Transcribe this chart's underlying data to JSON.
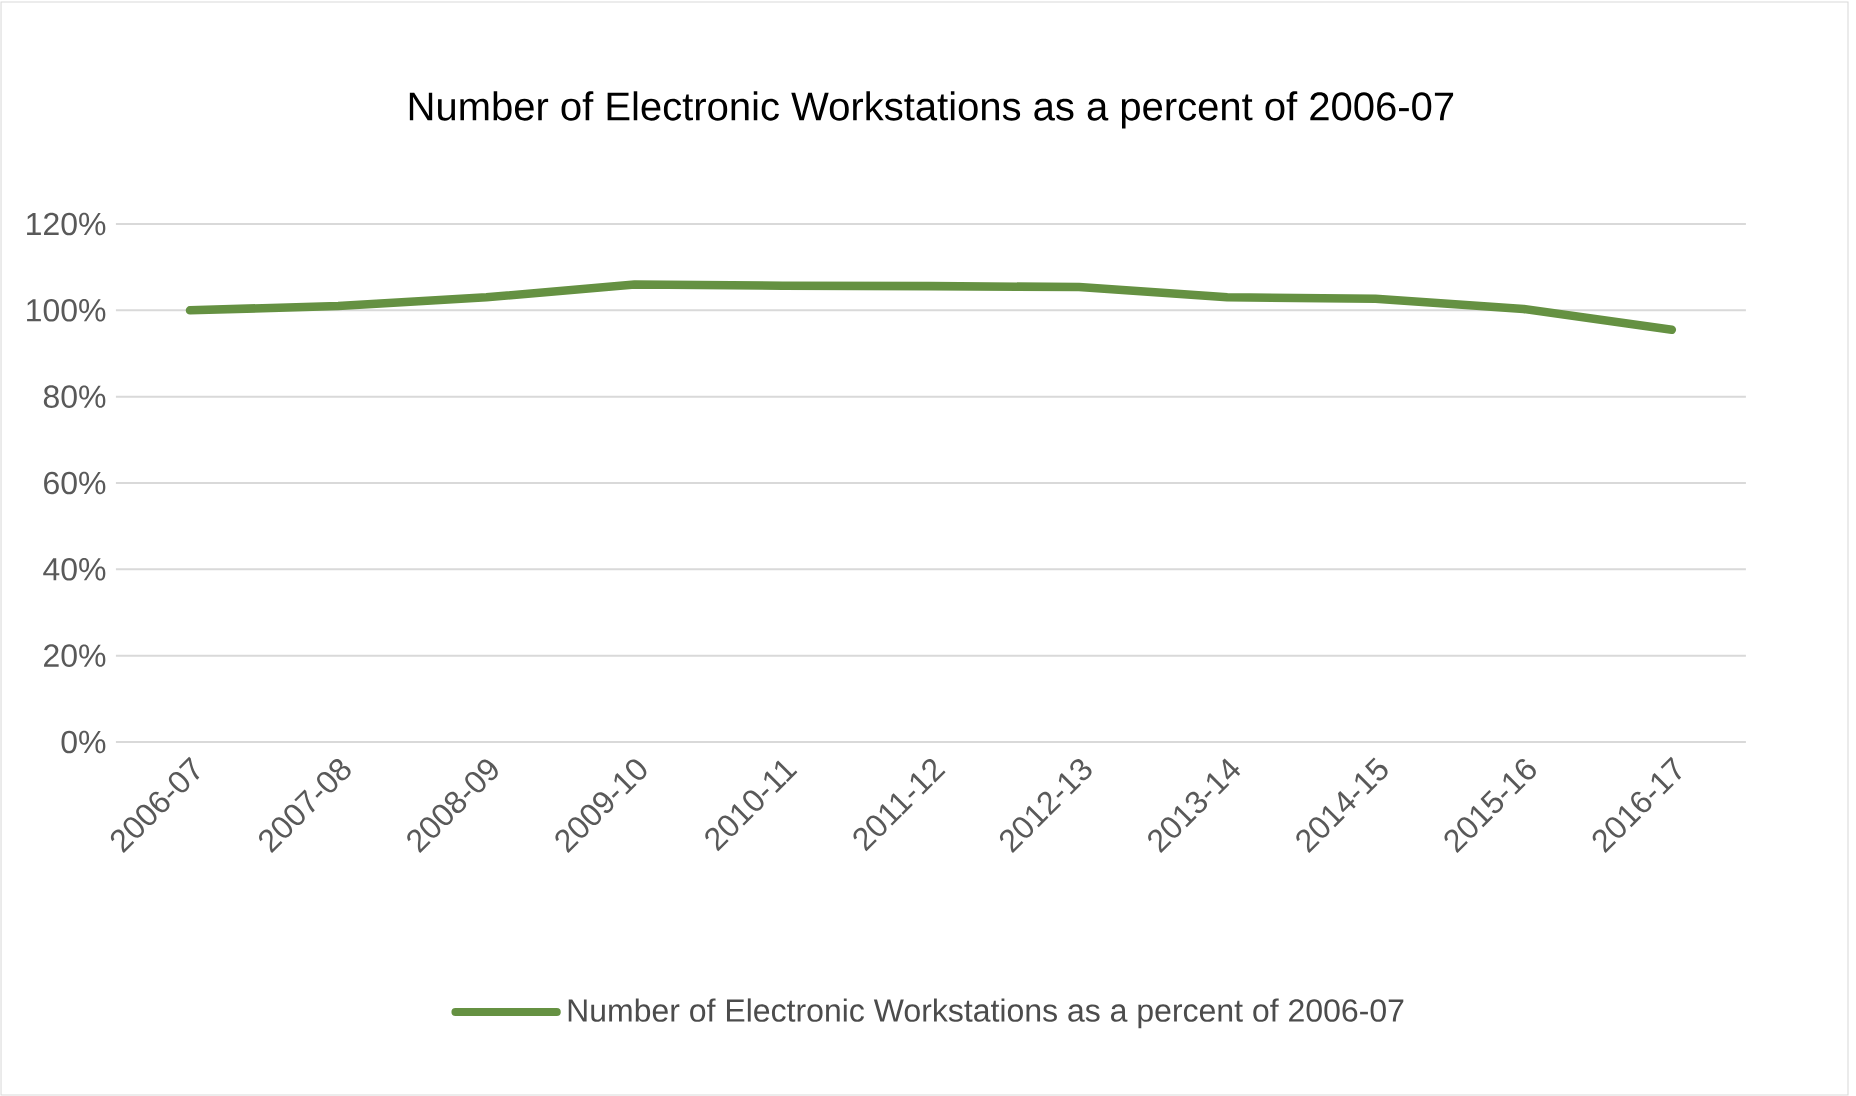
{
  "chart_data": {
    "type": "line",
    "title": "Number of Electronic Workstations as a percent of 2006-07",
    "categories": [
      "2006-07",
      "2007-08",
      "2008-09",
      "2009-10",
      "2010-11",
      "2011-12",
      "2012-13",
      "2013-14",
      "2014-15",
      "2015-16",
      "2016-17"
    ],
    "series": [
      {
        "name": "Number of Electronic Workstations as a percent of 2006-07",
        "color": "#659142",
        "values": [
          100,
          101,
          103,
          106,
          105.7,
          105.6,
          105.4,
          103,
          102.7,
          100.3,
          95.5
        ]
      }
    ],
    "ylim": [
      0,
      120
    ],
    "yticks": [
      {
        "value": 0,
        "label": "0%"
      },
      {
        "value": 20,
        "label": "20%"
      },
      {
        "value": 40,
        "label": "40%"
      },
      {
        "value": 60,
        "label": "60%"
      },
      {
        "value": 80,
        "label": "80%"
      },
      {
        "value": 100,
        "label": "100%"
      },
      {
        "value": 120,
        "label": "120%"
      }
    ],
    "grid": "y",
    "legend": "bottom",
    "marker": "none",
    "line_style": "solid"
  }
}
